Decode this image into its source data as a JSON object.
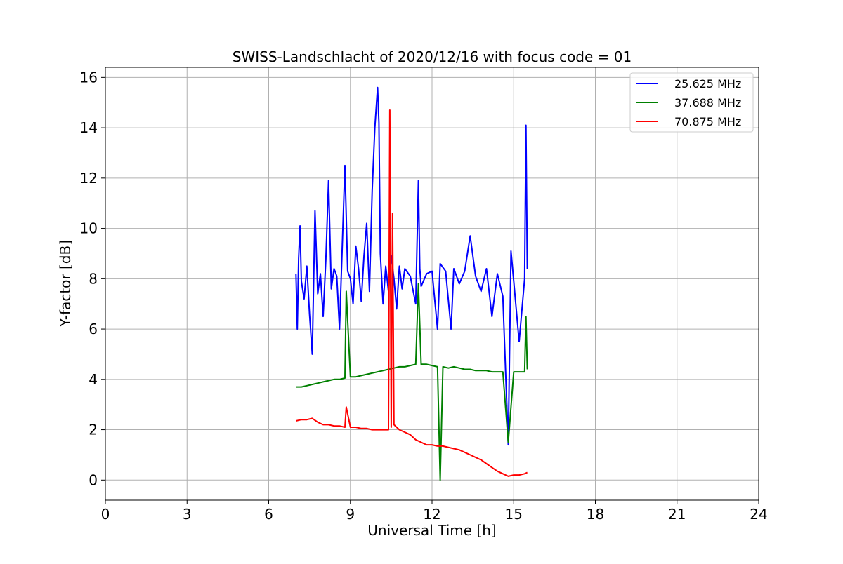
{
  "chart_data": {
    "type": "line",
    "title": "SWISS-Landschlacht of 2020/12/16 with focus code = 01",
    "xlabel": "Universal Time [h]",
    "ylabel": "Y-factor [dB]",
    "xlim": [
      0,
      24
    ],
    "ylim": [
      -0.8,
      16.4
    ],
    "x_ticks": [
      0,
      3,
      6,
      9,
      12,
      15,
      18,
      21,
      24
    ],
    "y_ticks": [
      0,
      2,
      4,
      6,
      8,
      10,
      12,
      14,
      16
    ],
    "grid": true,
    "legend_position": "top-right",
    "series": [
      {
        "name": "25.625 MHz",
        "color": "#0000ff",
        "x": [
          7.0,
          7.05,
          7.1,
          7.15,
          7.2,
          7.3,
          7.4,
          7.5,
          7.6,
          7.7,
          7.8,
          7.9,
          8.0,
          8.1,
          8.2,
          8.3,
          8.4,
          8.5,
          8.6,
          8.7,
          8.8,
          8.9,
          9.0,
          9.1,
          9.2,
          9.3,
          9.4,
          9.5,
          9.6,
          9.7,
          9.8,
          9.9,
          10.0,
          10.05,
          10.1,
          10.2,
          10.3,
          10.4,
          10.5,
          10.6,
          10.7,
          10.8,
          10.9,
          11.0,
          11.2,
          11.4,
          11.5,
          11.55,
          11.6,
          11.8,
          12.0,
          12.2,
          12.3,
          12.5,
          12.7,
          12.8,
          13.0,
          13.2,
          13.4,
          13.6,
          13.8,
          14.0,
          14.2,
          14.4,
          14.6,
          14.8,
          14.9,
          15.0,
          15.2,
          15.4,
          15.45,
          15.5
        ],
        "values": [
          8.2,
          6.0,
          8.8,
          10.1,
          7.9,
          7.2,
          8.5,
          6.6,
          5.0,
          10.7,
          7.4,
          8.2,
          6.5,
          8.8,
          11.9,
          7.6,
          8.4,
          8.1,
          6.0,
          9.2,
          12.5,
          8.3,
          8.0,
          7.0,
          9.3,
          8.4,
          7.1,
          8.9,
          10.2,
          7.5,
          11.5,
          14.0,
          15.6,
          14.2,
          9.0,
          7.0,
          8.5,
          7.5,
          8.9,
          8.0,
          6.8,
          8.5,
          7.6,
          8.4,
          8.1,
          7.0,
          11.9,
          8.4,
          7.7,
          8.2,
          8.3,
          6.0,
          8.6,
          8.3,
          6.0,
          8.4,
          7.8,
          8.3,
          9.7,
          8.1,
          7.5,
          8.4,
          6.5,
          8.2,
          7.3,
          1.4,
          9.1,
          7.9,
          5.5,
          8.0,
          14.1,
          8.4
        ]
      },
      {
        "name": "37.688 MHz",
        "color": "#008000",
        "x": [
          7.0,
          7.2,
          7.4,
          7.6,
          7.8,
          8.0,
          8.2,
          8.4,
          8.6,
          8.8,
          8.85,
          9.0,
          9.2,
          9.4,
          9.6,
          9.8,
          10.0,
          10.2,
          10.4,
          10.6,
          10.8,
          11.0,
          11.2,
          11.4,
          11.5,
          11.6,
          11.8,
          12.0,
          12.2,
          12.3,
          12.4,
          12.6,
          12.8,
          13.0,
          13.2,
          13.4,
          13.6,
          13.8,
          14.0,
          14.2,
          14.4,
          14.6,
          14.8,
          15.0,
          15.2,
          15.4,
          15.45,
          15.5
        ],
        "values": [
          3.7,
          3.7,
          3.75,
          3.8,
          3.85,
          3.9,
          3.95,
          4.0,
          4.0,
          4.05,
          7.5,
          4.1,
          4.1,
          4.15,
          4.2,
          4.25,
          4.3,
          4.35,
          4.4,
          4.45,
          4.5,
          4.5,
          4.55,
          4.6,
          7.8,
          4.6,
          4.6,
          4.55,
          4.5,
          0.0,
          4.5,
          4.45,
          4.5,
          4.45,
          4.4,
          4.4,
          4.35,
          4.35,
          4.35,
          4.3,
          4.3,
          4.3,
          1.5,
          4.3,
          4.3,
          4.3,
          6.5,
          4.4
        ]
      },
      {
        "name": "70.875 MHz",
        "color": "#ff0000",
        "x": [
          7.0,
          7.2,
          7.4,
          7.6,
          7.8,
          8.0,
          8.2,
          8.4,
          8.6,
          8.8,
          8.85,
          9.0,
          9.2,
          9.4,
          9.6,
          9.8,
          10.0,
          10.2,
          10.4,
          10.45,
          10.5,
          10.55,
          10.6,
          10.7,
          10.8,
          11.0,
          11.2,
          11.4,
          11.6,
          11.8,
          12.0,
          12.2,
          12.4,
          12.6,
          12.8,
          13.0,
          13.2,
          13.4,
          13.6,
          13.8,
          14.0,
          14.2,
          14.4,
          14.6,
          14.8,
          15.0,
          15.2,
          15.4,
          15.5
        ],
        "values": [
          2.35,
          2.4,
          2.4,
          2.45,
          2.3,
          2.2,
          2.2,
          2.15,
          2.15,
          2.1,
          2.9,
          2.1,
          2.1,
          2.05,
          2.05,
          2.0,
          2.0,
          2.0,
          2.0,
          14.7,
          2.1,
          10.6,
          2.2,
          2.1,
          2.0,
          1.9,
          1.8,
          1.6,
          1.5,
          1.4,
          1.4,
          1.35,
          1.35,
          1.3,
          1.25,
          1.2,
          1.1,
          1.0,
          0.9,
          0.8,
          0.65,
          0.5,
          0.35,
          0.25,
          0.15,
          0.2,
          0.2,
          0.25,
          0.3
        ]
      }
    ]
  }
}
